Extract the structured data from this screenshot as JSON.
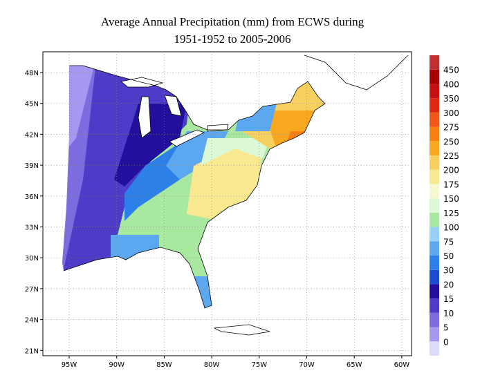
{
  "title": [
    "Average Annual Precipitation (mm) from ECWS during",
    "1951-1952 to 2005-2006"
  ],
  "map": {
    "lat_labels": [
      "48N",
      "45N",
      "42N",
      "39N",
      "36N",
      "33N",
      "30N",
      "27N",
      "24N",
      "21N"
    ],
    "lon_labels": [
      "95W",
      "90W",
      "85W",
      "80W",
      "75W",
      "70W",
      "65W",
      "60W"
    ]
  },
  "colorbar": {
    "labels": [
      0,
      5,
      10,
      15,
      20,
      30,
      50,
      75,
      100,
      125,
      150,
      175,
      200,
      225,
      250,
      275,
      300,
      350,
      400,
      450
    ],
    "colors": [
      "#dcdcf8",
      "#a498f0",
      "#7c6ce0",
      "#4c3cc8",
      "#22109c",
      "#1c4cd0",
      "#2c80e8",
      "#5ca8f0",
      "#98d0f8",
      "#a8e8a0",
      "#dcf8d4",
      "#f8f8d0",
      "#f8e890",
      "#f8d060",
      "#f8a820",
      "#f88010",
      "#f05818",
      "#e02810",
      "#c81010",
      "#a80000",
      "#c03030"
    ]
  }
}
